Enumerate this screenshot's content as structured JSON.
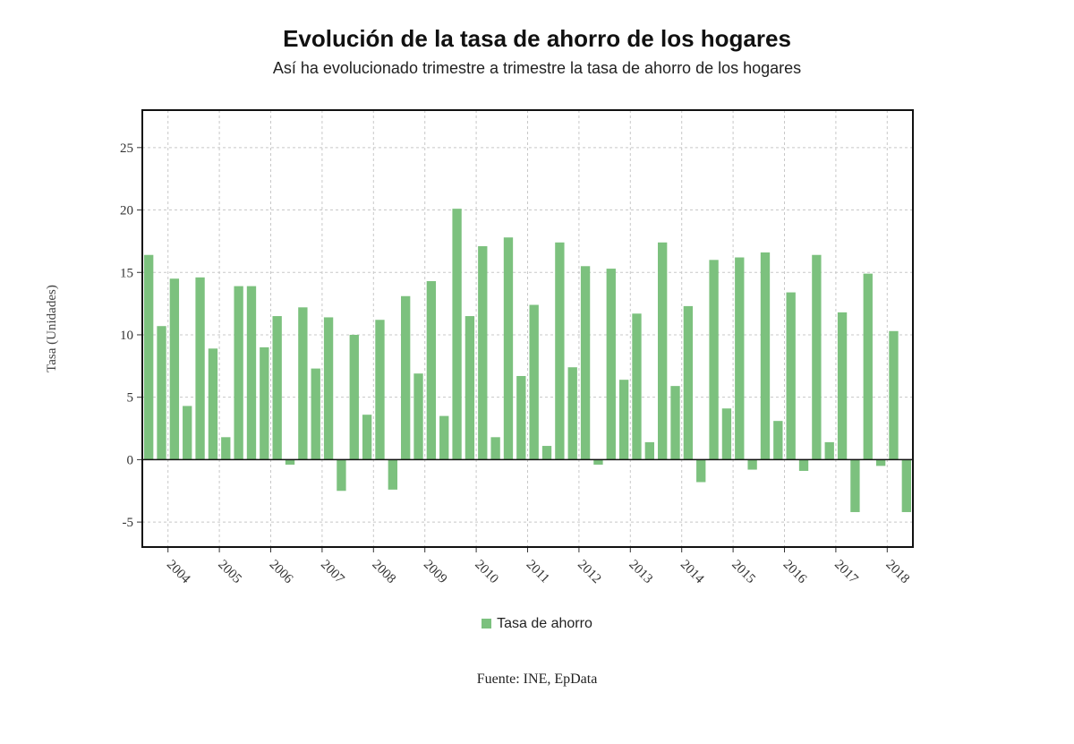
{
  "chart_data": {
    "type": "bar",
    "title": "Evolución de la tasa de ahorro de los hogares",
    "subtitle": "Así ha evolucionado trimestre a trimestre la tasa de ahorro de los hogares",
    "xlabel": "",
    "ylabel": "Tasa (Unidades)",
    "ylim": [
      -7,
      28
    ],
    "yticks": [
      -5,
      0,
      5,
      10,
      15,
      20,
      25
    ],
    "xtick_labels": [
      "2004",
      "2005",
      "2006",
      "2007",
      "2008",
      "2009",
      "2010",
      "2011",
      "2012",
      "2013",
      "2014",
      "2015",
      "2016",
      "2017",
      "2018"
    ],
    "grid": true,
    "legend_position": "bottom",
    "series": [
      {
        "name": "Tasa de ahorro",
        "color": "#7cc17e",
        "values": [
          16.4,
          10.7,
          14.5,
          4.3,
          14.6,
          8.9,
          1.8,
          13.9,
          13.9,
          9.0,
          11.5,
          -0.4,
          12.2,
          7.3,
          11.4,
          -2.5,
          10.0,
          3.6,
          11.2,
          -2.4,
          13.1,
          6.9,
          14.3,
          3.5,
          20.1,
          11.5,
          17.1,
          1.8,
          17.8,
          6.7,
          12.4,
          1.1,
          17.4,
          7.4,
          15.5,
          -0.4,
          15.3,
          6.4,
          11.7,
          1.4,
          17.4,
          5.9,
          12.3,
          -1.8,
          16.0,
          4.1,
          16.2,
          -0.8,
          16.6,
          3.1,
          13.4,
          -0.9,
          16.4,
          1.4,
          11.8,
          -4.2,
          14.9,
          -0.5,
          10.3,
          -4.2
        ]
      }
    ]
  },
  "source": "Fuente: INE, EpData"
}
